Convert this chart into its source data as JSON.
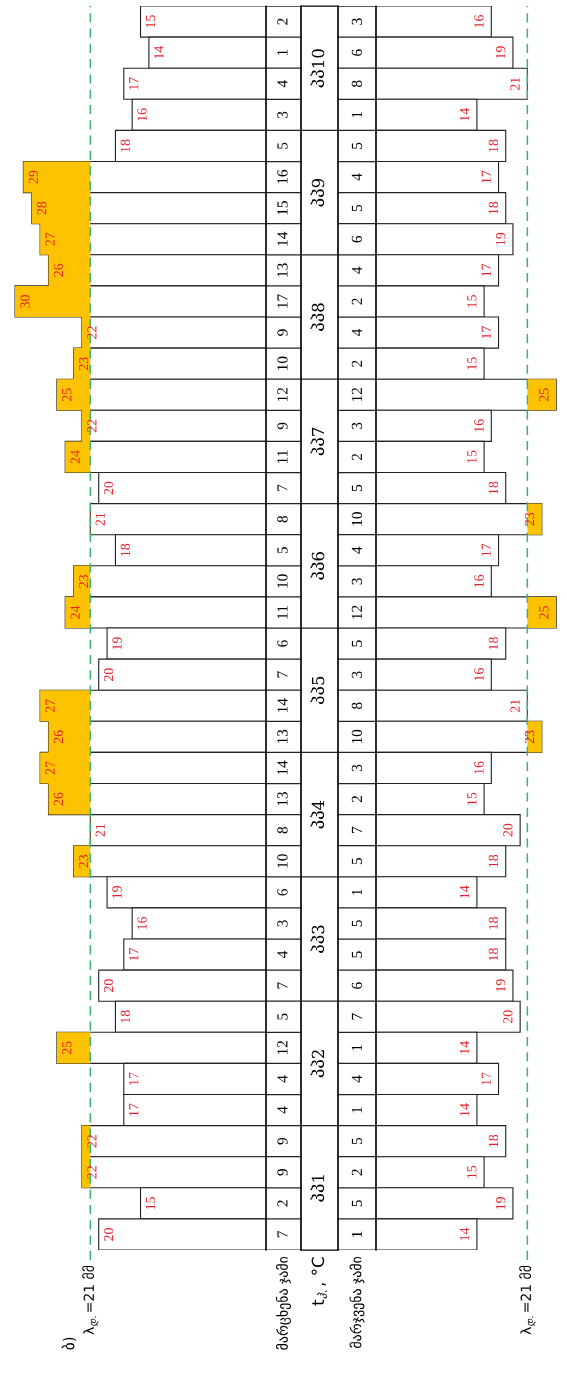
{
  "chart_data": [
    {
      "type": "bar",
      "orientation": "horizontal",
      "ylabel": "მარცხენა ჯამი",
      "annotations": [
        "ბ)"
      ],
      "categories": [
        "2",
        "1",
        "4",
        "3",
        "5",
        "16",
        "15",
        "14",
        "13",
        "17",
        "9",
        "10",
        "12",
        "9",
        "11",
        "7",
        "8",
        "5",
        "10",
        "11",
        "6",
        "7",
        "14",
        "13",
        "14",
        "13",
        "8",
        "10",
        "6",
        "3",
        "4",
        "7",
        "5",
        "12",
        "4",
        "4",
        "9",
        "9",
        "2",
        "7"
      ],
      "values": [
        15,
        14,
        17,
        16,
        18,
        29,
        28,
        27,
        26,
        30,
        22,
        23,
        25,
        22,
        24,
        20,
        21,
        18,
        23,
        24,
        19,
        20,
        27,
        26,
        27,
        26,
        21,
        23,
        19,
        16,
        17,
        20,
        18,
        25,
        17,
        17,
        22,
        22,
        15,
        20
      ],
      "color": "#ffffff",
      "data_labels": true,
      "ref_lines": [
        {
          "axis": "x",
          "value": 21,
          "label": "λ$_{დ.}$=21 მმ",
          "color": "#3cb371",
          "line_style": "dashed"
        }
      ],
      "bands": [
        {
          "axis": "x",
          "from": 21,
          "to": 30,
          "color": "#fdc300"
        }
      ]
    },
    {
      "type": "other",
      "ylabel": "t$_{ჰ.}$, °C",
      "categories": [
        "პპ10",
        "პპ9",
        "პპ8",
        "პპ7",
        "პპ6",
        "პპ5",
        "პპ4",
        "პპ3",
        "პპ2",
        "პპ1"
      ]
    },
    {
      "type": "bar",
      "orientation": "horizontal",
      "ylabel": "მარჯვენა ჯამი",
      "categories": [
        "3",
        "6",
        "8",
        "1",
        "5",
        "4",
        "5",
        "6",
        "4",
        "2",
        "4",
        "2",
        "12",
        "3",
        "2",
        "5",
        "10",
        "4",
        "3",
        "12",
        "5",
        "3",
        "8",
        "10",
        "3",
        "2",
        "7",
        "5",
        "1",
        "5",
        "5",
        "6",
        "7",
        "1",
        "4",
        "1",
        "5",
        "2",
        "5",
        "1"
      ],
      "values": [
        16,
        19,
        21,
        14,
        18,
        17,
        18,
        19,
        17,
        15,
        17,
        15,
        25,
        16,
        15,
        18,
        23,
        17,
        16,
        25,
        18,
        16,
        21,
        23,
        16,
        15,
        20,
        18,
        14,
        18,
        18,
        19,
        20,
        14,
        17,
        14,
        18,
        15,
        19,
        14
      ],
      "color": "#ffffff",
      "data_labels": true,
      "ref_lines": [
        {
          "axis": "x",
          "value": 21,
          "label": "λ$_{დ.}$=21 მმ",
          "color": "#3cb371",
          "line_style": "dashed"
        }
      ],
      "bands": [
        {
          "axis": "x",
          "from": 21,
          "to": 25,
          "color": "#fdc300"
        }
      ]
    }
  ]
}
